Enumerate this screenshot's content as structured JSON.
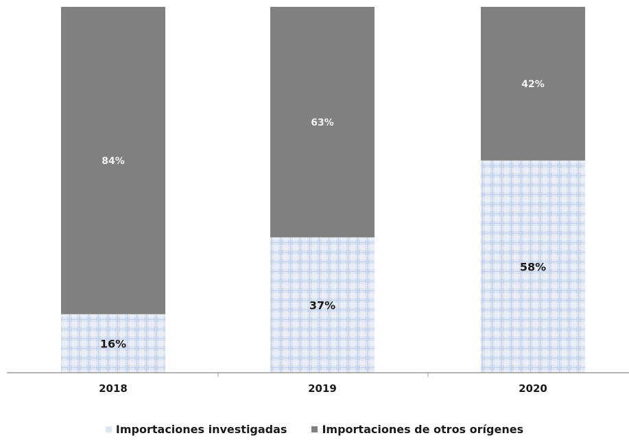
{
  "chart_data": {
    "type": "bar",
    "stacked": true,
    "percent": true,
    "categories": [
      "2018",
      "2019",
      "2020"
    ],
    "series": [
      {
        "name": "Importaciones investigadas",
        "values": [
          16,
          37,
          58
        ],
        "labels": [
          "16%",
          "37%",
          "58%"
        ],
        "color": "#dde6f3",
        "pattern": "light-blue-check"
      },
      {
        "name": "Importaciones de otros orígenes",
        "values": [
          84,
          63,
          42
        ],
        "labels": [
          "84%",
          "63%",
          "42%"
        ],
        "color": "#808080"
      }
    ],
    "ylim": [
      0,
      100
    ],
    "grid": false,
    "legend": "bottom"
  }
}
